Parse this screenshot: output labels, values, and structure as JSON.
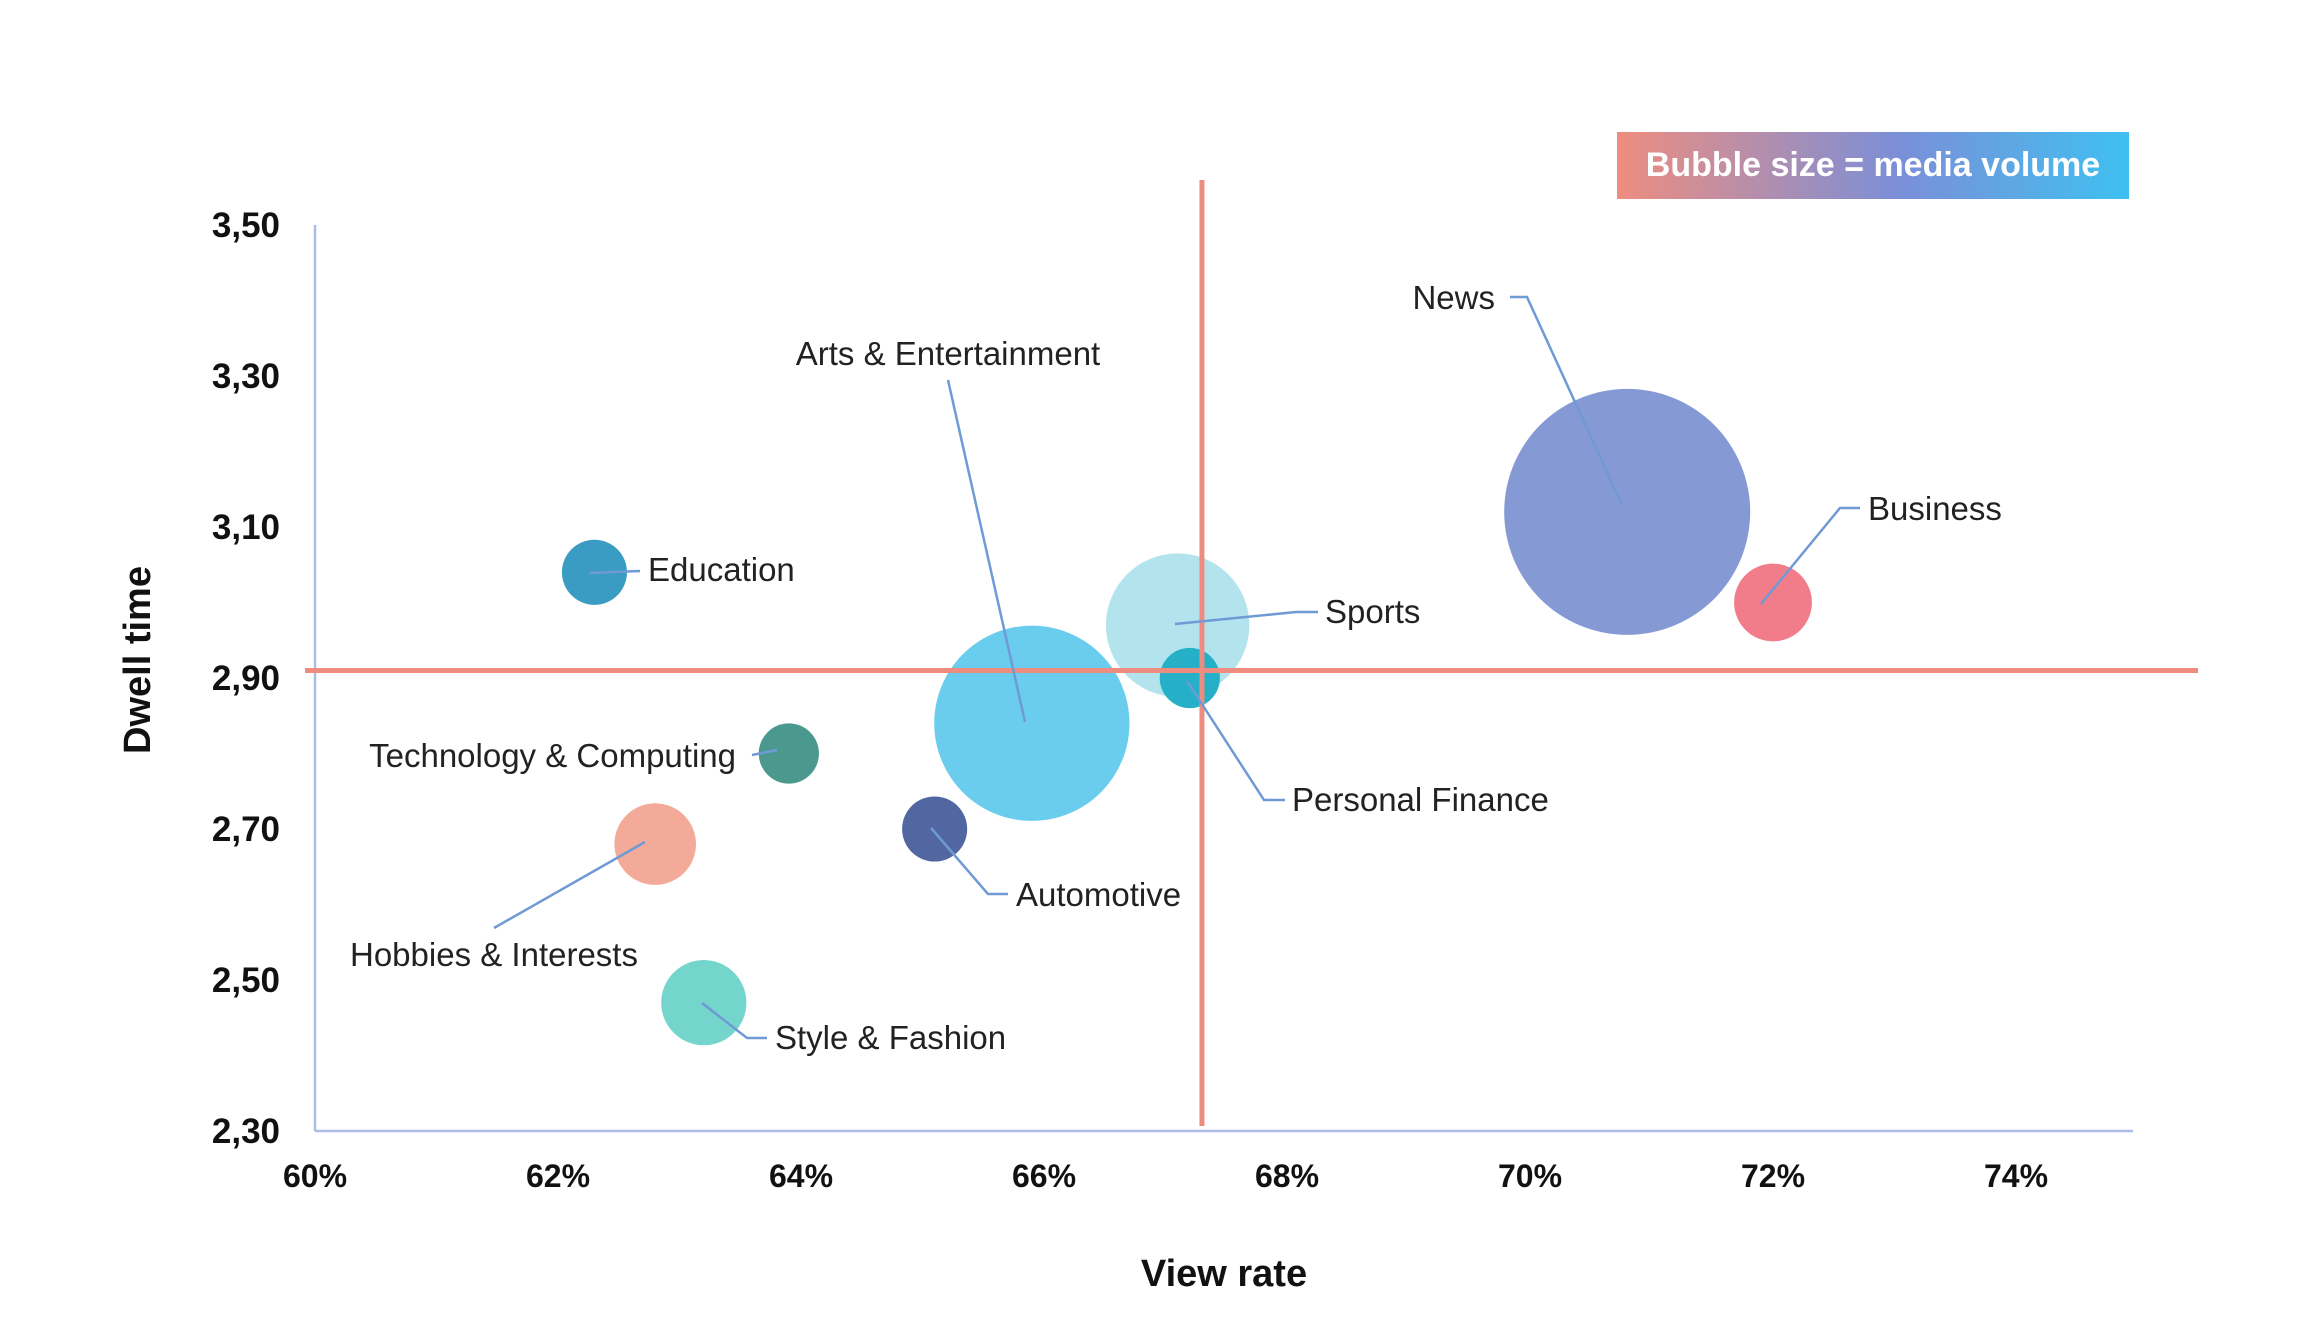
{
  "chart_data": {
    "type": "scatter",
    "subtype": "bubble",
    "xlabel": "View rate",
    "ylabel": "Dwell time",
    "xlim": [
      0.6,
      0.75
    ],
    "ylim": [
      2.3,
      3.5
    ],
    "x_ticks": [
      "60%",
      "62%",
      "64%",
      "66%",
      "68%",
      "70%",
      "72%",
      "74%"
    ],
    "x_tick_values": [
      0.6,
      0.62,
      0.64,
      0.66,
      0.68,
      0.7,
      0.72,
      0.74
    ],
    "y_ticks": [
      "3,50",
      "3,30",
      "3,10",
      "2,90",
      "2,70",
      "2,50",
      "2,30"
    ],
    "y_tick_values": [
      3.5,
      3.3,
      3.1,
      2.9,
      2.7,
      2.5,
      2.3
    ],
    "legend_note": "Bubble size = media volume",
    "legend_placement": "top-right",
    "reference_lines": {
      "x": 0.673,
      "y": 2.91,
      "color": "#ee8d7f"
    },
    "points": [
      {
        "label": "News",
        "x": 0.708,
        "y": 3.12,
        "size": 100,
        "color": "#8599d4"
      },
      {
        "label": "Business",
        "x": 0.72,
        "y": 3.0,
        "size": 10,
        "color": "#f27d8a"
      },
      {
        "label": "Sports",
        "x": 0.671,
        "y": 2.97,
        "size": 34,
        "color": "#b3e4ee"
      },
      {
        "label": "Personal Finance",
        "x": 0.672,
        "y": 2.9,
        "size": 6,
        "color": "#25b0c8"
      },
      {
        "label": "Arts & Entertainment",
        "x": 0.659,
        "y": 2.84,
        "size": 63,
        "color": "#6acdee"
      },
      {
        "label": "Education",
        "x": 0.623,
        "y": 3.04,
        "size": 7,
        "color": "#3a9cc2"
      },
      {
        "label": "Technology & Computing",
        "x": 0.639,
        "y": 2.8,
        "size": 6,
        "color": "#4b998e"
      },
      {
        "label": "Automotive",
        "x": 0.651,
        "y": 2.7,
        "size": 7,
        "color": "#5267a2"
      },
      {
        "label": "Hobbies & Interests",
        "x": 0.628,
        "y": 2.68,
        "size": 11,
        "color": "#f4aa98"
      },
      {
        "label": "Style & Fashion",
        "x": 0.632,
        "y": 2.47,
        "size": 12,
        "color": "#74d5cd"
      }
    ]
  }
}
